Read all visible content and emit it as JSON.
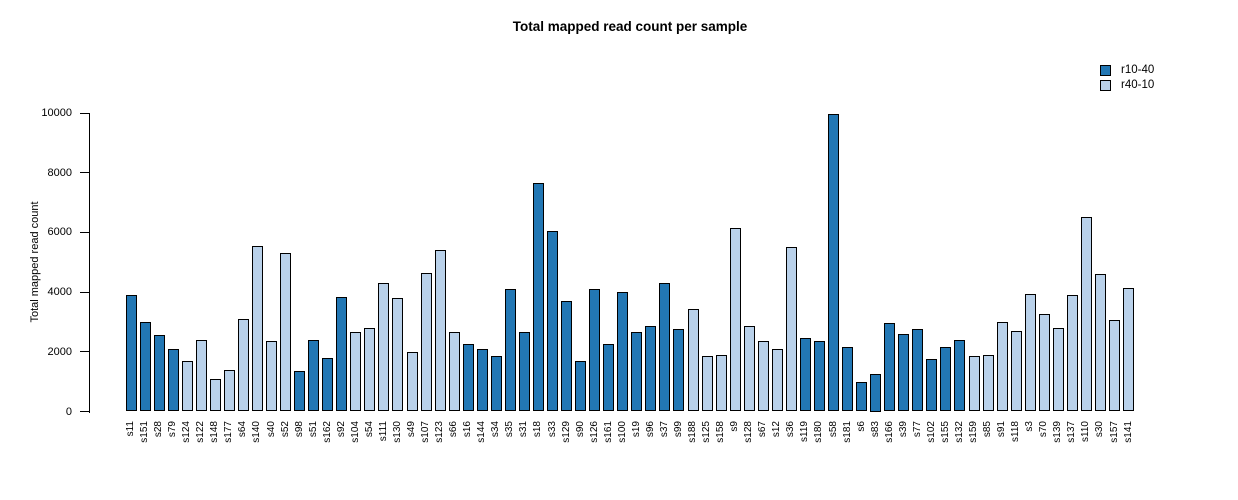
{
  "title": "Total mapped read count per sample",
  "chart_data": {
    "type": "bar",
    "title": "Total mapped read count per sample",
    "xlabel": "",
    "ylabel": "Total mapped read count",
    "ylim": [
      0,
      10000
    ],
    "yticks": [
      0,
      2000,
      4000,
      6000,
      8000,
      10000
    ],
    "grid": false,
    "legend_position": "top-right",
    "legend": [
      {
        "name": "r10-40",
        "color": "#2277b4"
      },
      {
        "name": "r40-10",
        "color": "#b9d1ea"
      }
    ],
    "samples": [
      {
        "id": "s11",
        "value": 3900,
        "series": "r10-40"
      },
      {
        "id": "s151",
        "value": 3000,
        "series": "r10-40"
      },
      {
        "id": "s28",
        "value": 2550,
        "series": "r10-40"
      },
      {
        "id": "s79",
        "value": 2100,
        "series": "r10-40"
      },
      {
        "id": "s124",
        "value": 1700,
        "series": "r40-10"
      },
      {
        "id": "s122",
        "value": 2400,
        "series": "r40-10"
      },
      {
        "id": "s148",
        "value": 1100,
        "series": "r40-10"
      },
      {
        "id": "s177",
        "value": 1400,
        "series": "r40-10"
      },
      {
        "id": "s64",
        "value": 3100,
        "series": "r40-10"
      },
      {
        "id": "s140",
        "value": 5550,
        "series": "r40-10"
      },
      {
        "id": "s40",
        "value": 2350,
        "series": "r40-10"
      },
      {
        "id": "s52",
        "value": 5300,
        "series": "r40-10"
      },
      {
        "id": "s98",
        "value": 1350,
        "series": "r10-40"
      },
      {
        "id": "s51",
        "value": 2400,
        "series": "r10-40"
      },
      {
        "id": "s162",
        "value": 1800,
        "series": "r10-40"
      },
      {
        "id": "s92",
        "value": 3850,
        "series": "r10-40"
      },
      {
        "id": "s104",
        "value": 2650,
        "series": "r40-10"
      },
      {
        "id": "s54",
        "value": 2800,
        "series": "r40-10"
      },
      {
        "id": "s111",
        "value": 4300,
        "series": "r40-10"
      },
      {
        "id": "s130",
        "value": 3800,
        "series": "r40-10"
      },
      {
        "id": "s49",
        "value": 2000,
        "series": "r40-10"
      },
      {
        "id": "s107",
        "value": 4650,
        "series": "r40-10"
      },
      {
        "id": "s123",
        "value": 5400,
        "series": "r40-10"
      },
      {
        "id": "s66",
        "value": 2650,
        "series": "r40-10"
      },
      {
        "id": "s16",
        "value": 2250,
        "series": "r10-40"
      },
      {
        "id": "s144",
        "value": 2100,
        "series": "r10-40"
      },
      {
        "id": "s34",
        "value": 1850,
        "series": "r10-40"
      },
      {
        "id": "s35",
        "value": 4100,
        "series": "r10-40"
      },
      {
        "id": "s31",
        "value": 2650,
        "series": "r10-40"
      },
      {
        "id": "s18",
        "value": 7650,
        "series": "r10-40"
      },
      {
        "id": "s33",
        "value": 6050,
        "series": "r10-40"
      },
      {
        "id": "s129",
        "value": 3700,
        "series": "r10-40"
      },
      {
        "id": "s90",
        "value": 1700,
        "series": "r10-40"
      },
      {
        "id": "s126",
        "value": 4100,
        "series": "r10-40"
      },
      {
        "id": "s161",
        "value": 2250,
        "series": "r10-40"
      },
      {
        "id": "s100",
        "value": 4000,
        "series": "r10-40"
      },
      {
        "id": "s19",
        "value": 2650,
        "series": "r10-40"
      },
      {
        "id": "s96",
        "value": 2850,
        "series": "r10-40"
      },
      {
        "id": "s37",
        "value": 4300,
        "series": "r10-40"
      },
      {
        "id": "s99",
        "value": 2750,
        "series": "r10-40"
      },
      {
        "id": "s188",
        "value": 3450,
        "series": "r40-10"
      },
      {
        "id": "s125",
        "value": 1850,
        "series": "r40-10"
      },
      {
        "id": "s158",
        "value": 1900,
        "series": "r40-10"
      },
      {
        "id": "s9",
        "value": 6150,
        "series": "r40-10"
      },
      {
        "id": "s128",
        "value": 2850,
        "series": "r40-10"
      },
      {
        "id": "s67",
        "value": 2350,
        "series": "r40-10"
      },
      {
        "id": "s12",
        "value": 2100,
        "series": "r40-10"
      },
      {
        "id": "s36",
        "value": 5500,
        "series": "r40-10"
      },
      {
        "id": "s119",
        "value": 2450,
        "series": "r10-40"
      },
      {
        "id": "s180",
        "value": 2350,
        "series": "r10-40"
      },
      {
        "id": "s58",
        "value": 9950,
        "series": "r10-40"
      },
      {
        "id": "s181",
        "value": 2150,
        "series": "r10-40"
      },
      {
        "id": "s6",
        "value": 1000,
        "series": "r10-40"
      },
      {
        "id": "s83",
        "value": 1250,
        "series": "r10-40"
      },
      {
        "id": "s166",
        "value": 2950,
        "series": "r10-40"
      },
      {
        "id": "s39",
        "value": 2600,
        "series": "r10-40"
      },
      {
        "id": "s77",
        "value": 2750,
        "series": "r10-40"
      },
      {
        "id": "s102",
        "value": 1750,
        "series": "r10-40"
      },
      {
        "id": "s155",
        "value": 2150,
        "series": "r10-40"
      },
      {
        "id": "s132",
        "value": 2400,
        "series": "r10-40"
      },
      {
        "id": "s159",
        "value": 1850,
        "series": "r40-10"
      },
      {
        "id": "s85",
        "value": 1900,
        "series": "r40-10"
      },
      {
        "id": "s91",
        "value": 3000,
        "series": "r40-10"
      },
      {
        "id": "s118",
        "value": 2700,
        "series": "r40-10"
      },
      {
        "id": "s3",
        "value": 3950,
        "series": "r40-10"
      },
      {
        "id": "s70",
        "value": 3250,
        "series": "r40-10"
      },
      {
        "id": "s139",
        "value": 2800,
        "series": "r40-10"
      },
      {
        "id": "s137",
        "value": 3900,
        "series": "r40-10"
      },
      {
        "id": "s110",
        "value": 6500,
        "series": "r40-10"
      },
      {
        "id": "s30",
        "value": 4600,
        "series": "r40-10"
      },
      {
        "id": "s157",
        "value": 3050,
        "series": "r40-10"
      },
      {
        "id": "s141",
        "value": 4150,
        "series": "r40-10"
      }
    ]
  }
}
